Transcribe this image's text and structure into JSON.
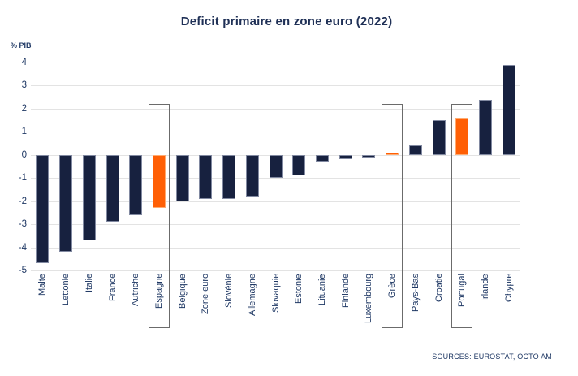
{
  "title": "Deficit primaire en zone euro (2022)",
  "axis_unit_label": "% PIB",
  "source": "SOURCES: EUROSTAT, OCTO AM",
  "colors": {
    "bar": "#17213f",
    "highlight_bar": "#ff5f05",
    "text": "#1f3864",
    "gridline": "#e3e3e3",
    "box_border": "#6b6b6b"
  },
  "chart_data": {
    "type": "bar",
    "title": "Deficit primaire en zone euro (2022)",
    "xlabel": "",
    "ylabel": "% PIB",
    "ylim": [
      -5,
      4
    ],
    "ytick_interval": 1,
    "grid": true,
    "legend": false,
    "categories": [
      "Malte",
      "Lettonie",
      "Italie",
      "France",
      "Autriche",
      "Espagne",
      "Belgique",
      "Zone euro",
      "Slovénie",
      "Allemagne",
      "Slovaquie",
      "Estonie",
      "Lituanie",
      "Finlande",
      "Luxembourg",
      "Grèce",
      "Pays-Bas",
      "Croatie",
      "Portugal",
      "Irlande",
      "Chypre"
    ],
    "values": [
      -4.7,
      -4.2,
      -3.7,
      -2.9,
      -2.6,
      -2.3,
      -2.0,
      -1.9,
      -1.9,
      -1.8,
      -1.0,
      -0.9,
      -0.3,
      -0.2,
      -0.1,
      0.1,
      0.4,
      1.5,
      1.6,
      2.4,
      3.9
    ],
    "highlighted_categories": [
      "Espagne",
      "Grèce",
      "Portugal"
    ],
    "boxed_categories": [
      "Espagne",
      "Grèce",
      "Portugal"
    ]
  }
}
